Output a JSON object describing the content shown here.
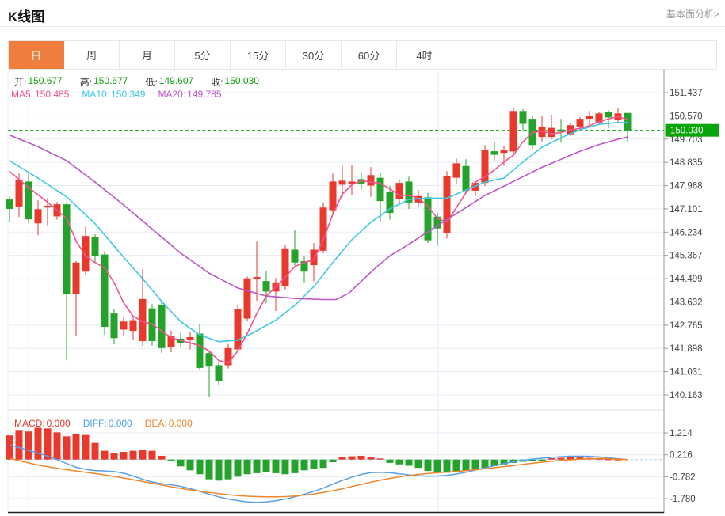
{
  "header": {
    "title": "K线图",
    "link_label": "基本面分析>"
  },
  "tabs": [
    {
      "name": "tab-day",
      "label": "日",
      "active": true
    },
    {
      "name": "tab-week",
      "label": "周",
      "active": false
    },
    {
      "name": "tab-month",
      "label": "月",
      "active": false
    },
    {
      "name": "tab-5min",
      "label": "5分",
      "active": false
    },
    {
      "name": "tab-15min",
      "label": "15分",
      "active": false
    },
    {
      "name": "tab-30min",
      "label": "30分",
      "active": false
    },
    {
      "name": "tab-60min",
      "label": "60分",
      "active": false
    },
    {
      "name": "tab-4hour",
      "label": "4时",
      "active": false
    }
  ],
  "ohlc_bar": [
    {
      "label": "开:",
      "value": "150.677"
    },
    {
      "label": "高:",
      "value": "150.677"
    },
    {
      "label": "低:",
      "value": "149.607"
    },
    {
      "label": "收:",
      "value": "150.030"
    }
  ],
  "ma_bar": [
    {
      "label": "MA5:",
      "value": "150.485",
      "color": "#f2538f"
    },
    {
      "label": "MA10:",
      "value": "150.349",
      "color": "#3fc8e4"
    },
    {
      "label": "MA20:",
      "value": "149.785",
      "color": "#bb55c8"
    }
  ],
  "macd_bar": [
    {
      "label": "MACD:",
      "value": "0.000",
      "color": "#e8392c"
    },
    {
      "label": "DIFF:",
      "value": "0.000",
      "color": "#4f9de8"
    },
    {
      "label": "DEA:",
      "value": "0.000",
      "color": "#f0862c"
    }
  ],
  "price_tag": {
    "value": "150.030",
    "bg": "#0aa50a"
  },
  "chart_data": {
    "type": "candlestick",
    "title": "K线图",
    "y_axis_ticks": [
      "151.437",
      "150.570",
      "149.703",
      "148.835",
      "147.968",
      "147.101",
      "146.234",
      "145.367",
      "144.499",
      "143.632",
      "142.765",
      "141.898",
      "141.031",
      "140.163"
    ],
    "macd_axis_ticks": [
      "1.214",
      "0.216",
      "-0.782",
      "-1.780"
    ],
    "current_price": 150.03,
    "colors": {
      "up": "#e8392c",
      "down": "#23a32a",
      "grid": "#e7edf6",
      "axis": "#999999",
      "axis_text": "#444444",
      "price_line": "#12a312",
      "macd_zero_line": "#a5d3ee",
      "panel_divider": "#e0e0e0",
      "bottom_line": "#222222"
    },
    "candles_ohlc": [
      [
        147.45,
        147.55,
        146.62,
        147.1
      ],
      [
        147.19,
        148.42,
        146.8,
        148.17
      ],
      [
        148.12,
        148.4,
        146.56,
        146.71
      ],
      [
        146.56,
        147.42,
        146.12,
        147.09
      ],
      [
        147.15,
        147.5,
        146.47,
        147.22
      ],
      [
        146.82,
        147.36,
        146.7,
        147.27
      ],
      [
        147.27,
        147.35,
        141.46,
        143.92
      ],
      [
        143.92,
        145.15,
        142.35,
        145.1
      ],
      [
        144.76,
        146.48,
        144.65,
        146.09
      ],
      [
        146.04,
        146.15,
        145.1,
        145.35
      ],
      [
        145.4,
        145.52,
        142.4,
        142.7
      ],
      [
        143.2,
        143.38,
        142.05,
        142.28
      ],
      [
        142.6,
        143.05,
        142.35,
        142.9
      ],
      [
        142.55,
        143.1,
        142.2,
        142.95
      ],
      [
        142.17,
        144.85,
        142.0,
        143.74
      ],
      [
        143.39,
        143.55,
        142.0,
        142.17
      ],
      [
        143.53,
        143.65,
        141.72,
        141.91
      ],
      [
        141.96,
        142.56,
        141.76,
        142.35
      ],
      [
        142.26,
        142.48,
        141.95,
        142.11
      ],
      [
        142.22,
        142.52,
        141.86,
        142.32
      ],
      [
        142.45,
        142.79,
        141.1,
        141.17
      ],
      [
        141.72,
        141.82,
        140.08,
        141.22
      ],
      [
        141.27,
        141.38,
        140.55,
        140.68
      ],
      [
        141.27,
        142.06,
        141.15,
        141.91
      ],
      [
        141.86,
        143.5,
        141.8,
        143.38
      ],
      [
        143.01,
        144.58,
        142.92,
        144.51
      ],
      [
        144.47,
        145.88,
        143.68,
        144.56
      ],
      [
        144.41,
        144.8,
        143.58,
        144.02
      ],
      [
        144.02,
        144.52,
        143.29,
        144.36
      ],
      [
        144.22,
        145.75,
        144.08,
        145.63
      ],
      [
        145.58,
        146.32,
        144.98,
        145.1
      ],
      [
        145.15,
        145.35,
        144.36,
        144.76
      ],
      [
        145.0,
        145.83,
        144.4,
        145.58
      ],
      [
        145.54,
        147.34,
        145.44,
        147.15
      ],
      [
        147.05,
        148.42,
        146.9,
        148.12
      ],
      [
        148.0,
        148.75,
        147.54,
        148.15
      ],
      [
        148.02,
        148.75,
        147.6,
        148.12
      ],
      [
        148.21,
        148.45,
        147.82,
        148.02
      ],
      [
        147.97,
        148.66,
        147.55,
        148.36
      ],
      [
        148.26,
        148.45,
        146.6,
        147.39
      ],
      [
        147.73,
        147.95,
        146.7,
        146.95
      ],
      [
        147.48,
        148.2,
        147.3,
        148.07
      ],
      [
        148.12,
        148.3,
        147.1,
        147.34
      ],
      [
        147.34,
        147.8,
        147.15,
        147.58
      ],
      [
        147.53,
        147.7,
        145.83,
        145.93
      ],
      [
        146.81,
        146.95,
        145.73,
        146.37
      ],
      [
        146.21,
        148.5,
        146.0,
        148.31
      ],
      [
        148.26,
        148.98,
        148.05,
        148.8
      ],
      [
        148.7,
        148.95,
        147.7,
        147.78
      ],
      [
        147.78,
        148.12,
        147.58,
        148.07
      ],
      [
        148.07,
        149.48,
        147.95,
        149.29
      ],
      [
        149.25,
        149.58,
        148.9,
        149.12
      ],
      [
        149.19,
        149.45,
        148.7,
        149.28
      ],
      [
        149.24,
        150.9,
        149.1,
        150.75
      ],
      [
        150.75,
        150.82,
        150.02,
        150.27
      ],
      [
        150.46,
        150.55,
        149.34,
        149.48
      ],
      [
        149.78,
        150.56,
        149.62,
        150.17
      ],
      [
        149.78,
        150.61,
        149.7,
        150.12
      ],
      [
        150.06,
        150.46,
        149.58,
        149.98
      ],
      [
        149.88,
        150.3,
        149.8,
        150.22
      ],
      [
        150.17,
        150.52,
        150.08,
        150.46
      ],
      [
        150.46,
        150.75,
        150.22,
        150.56
      ],
      [
        150.32,
        150.7,
        150.24,
        150.66
      ],
      [
        150.71,
        150.78,
        150.12,
        150.51
      ],
      [
        150.41,
        150.85,
        150.32,
        150.66
      ],
      [
        150.677,
        150.677,
        149.607,
        150.03
      ]
    ],
    "ma_lines": [
      {
        "name": "MA5",
        "color": "#f2538f",
        "points": [
          [
            12,
            148.5
          ],
          [
            36,
            147.9
          ],
          [
            60,
            147.35
          ],
          [
            84,
            146.75
          ],
          [
            96,
            145.9
          ],
          [
            108,
            145.35
          ],
          [
            120,
            145.1
          ],
          [
            132,
            144.9
          ],
          [
            144,
            144.35
          ],
          [
            156,
            143.6
          ],
          [
            168,
            143.1
          ],
          [
            180,
            142.9
          ],
          [
            192,
            142.8
          ],
          [
            204,
            142.55
          ],
          [
            216,
            142.3
          ],
          [
            228,
            142.2
          ],
          [
            240,
            142.1
          ],
          [
            252,
            142.0
          ],
          [
            264,
            141.8
          ],
          [
            276,
            141.45
          ],
          [
            288,
            141.35
          ],
          [
            300,
            141.8
          ],
          [
            312,
            142.45
          ],
          [
            324,
            143.2
          ],
          [
            336,
            143.85
          ],
          [
            348,
            144.2
          ],
          [
            360,
            144.55
          ],
          [
            372,
            144.95
          ],
          [
            384,
            145.1
          ],
          [
            396,
            145.2
          ],
          [
            408,
            145.95
          ],
          [
            420,
            146.9
          ],
          [
            432,
            147.65
          ],
          [
            444,
            148.0
          ],
          [
            456,
            148.15
          ],
          [
            468,
            148.1
          ],
          [
            480,
            148.05
          ],
          [
            492,
            147.85
          ],
          [
            504,
            147.6
          ],
          [
            516,
            147.6
          ],
          [
            528,
            147.5
          ],
          [
            540,
            147.2
          ],
          [
            552,
            146.75
          ],
          [
            564,
            146.6
          ],
          [
            576,
            147.15
          ],
          [
            588,
            147.7
          ],
          [
            600,
            148.1
          ],
          [
            612,
            148.3
          ],
          [
            624,
            148.55
          ],
          [
            636,
            148.85
          ],
          [
            648,
            149.1
          ],
          [
            660,
            149.6
          ],
          [
            672,
            149.95
          ],
          [
            684,
            150.0
          ],
          [
            696,
            149.9
          ],
          [
            708,
            149.95
          ],
          [
            720,
            150.05
          ],
          [
            732,
            150.1
          ],
          [
            744,
            150.2
          ],
          [
            756,
            150.35
          ],
          [
            768,
            150.45
          ],
          [
            780,
            150.55
          ],
          [
            792,
            150.42
          ]
        ]
      },
      {
        "name": "MA10",
        "color": "#3fc8e4",
        "points": [
          [
            12,
            148.9
          ],
          [
            48,
            148.25
          ],
          [
            84,
            147.55
          ],
          [
            120,
            146.55
          ],
          [
            156,
            145.3
          ],
          [
            180,
            144.5
          ],
          [
            204,
            143.65
          ],
          [
            228,
            142.9
          ],
          [
            252,
            142.4
          ],
          [
            276,
            142.15
          ],
          [
            300,
            142.2
          ],
          [
            324,
            142.55
          ],
          [
            348,
            142.95
          ],
          [
            372,
            143.5
          ],
          [
            396,
            144.2
          ],
          [
            420,
            145.1
          ],
          [
            444,
            145.95
          ],
          [
            468,
            146.6
          ],
          [
            492,
            147.1
          ],
          [
            516,
            147.45
          ],
          [
            540,
            147.5
          ],
          [
            564,
            147.5
          ],
          [
            588,
            147.8
          ],
          [
            612,
            148.1
          ],
          [
            636,
            148.25
          ],
          [
            660,
            148.85
          ],
          [
            684,
            149.4
          ],
          [
            708,
            149.75
          ],
          [
            732,
            150.05
          ],
          [
            756,
            150.25
          ],
          [
            780,
            150.32
          ],
          [
            792,
            150.32
          ]
        ]
      },
      {
        "name": "MA20",
        "color": "#bb55c8",
        "points": [
          [
            12,
            149.85
          ],
          [
            48,
            149.42
          ],
          [
            84,
            148.9
          ],
          [
            120,
            148.1
          ],
          [
            156,
            147.25
          ],
          [
            192,
            146.35
          ],
          [
            228,
            145.45
          ],
          [
            264,
            144.7
          ],
          [
            300,
            144.15
          ],
          [
            336,
            143.85
          ],
          [
            372,
            143.76
          ],
          [
            408,
            143.72
          ],
          [
            424,
            143.72
          ],
          [
            440,
            143.95
          ],
          [
            456,
            144.4
          ],
          [
            472,
            144.85
          ],
          [
            492,
            145.35
          ],
          [
            516,
            145.78
          ],
          [
            540,
            146.25
          ],
          [
            564,
            146.7
          ],
          [
            588,
            147.15
          ],
          [
            612,
            147.6
          ],
          [
            636,
            147.95
          ],
          [
            660,
            148.3
          ],
          [
            684,
            148.65
          ],
          [
            708,
            148.95
          ],
          [
            732,
            149.25
          ],
          [
            756,
            149.5
          ],
          [
            780,
            149.7
          ],
          [
            792,
            149.78
          ]
        ]
      }
    ],
    "macd": {
      "histogram": [
        1.1,
        1.35,
        1.28,
        1.45,
        1.42,
        1.24,
        1.06,
        1.15,
        1.12,
        0.76,
        0.4,
        0.29,
        0.35,
        0.4,
        0.44,
        0.4,
        0.17,
        -0.06,
        -0.31,
        -0.49,
        -0.67,
        -0.9,
        -0.96,
        -0.9,
        -0.78,
        -0.67,
        -0.62,
        -0.57,
        -0.62,
        -0.67,
        -0.62,
        -0.49,
        -0.44,
        -0.38,
        -0.12,
        0.1,
        0.15,
        0.17,
        0.12,
        0.05,
        -0.15,
        -0.22,
        -0.28,
        -0.38,
        -0.52,
        -0.6,
        -0.6,
        -0.55,
        -0.5,
        -0.45,
        -0.38,
        -0.3,
        -0.22,
        -0.15,
        -0.1,
        -0.05,
        -0.04,
        0.06,
        0.08,
        0.1,
        0.1,
        0.08,
        0.05,
        0.03,
        0.02,
        0.0
      ],
      "diff": {
        "name": "DIFF",
        "color": "#5ba0e8",
        "values": [
          0.68,
          0.55,
          0.42,
          0.3,
          0.15,
          0.0,
          -0.18,
          -0.35,
          -0.45,
          -0.5,
          -0.52,
          -0.55,
          -0.62,
          -0.75,
          -0.9,
          -1.02,
          -1.1,
          -1.15,
          -1.22,
          -1.32,
          -1.45,
          -1.58,
          -1.7,
          -1.8,
          -1.87,
          -1.93,
          -1.95,
          -1.93,
          -1.88,
          -1.8,
          -1.7,
          -1.58,
          -1.45,
          -1.3,
          -1.12,
          -0.95,
          -0.8,
          -0.68,
          -0.6,
          -0.58,
          -0.6,
          -0.65,
          -0.7,
          -0.74,
          -0.76,
          -0.75,
          -0.72,
          -0.66,
          -0.58,
          -0.48,
          -0.38,
          -0.28,
          -0.18,
          -0.1,
          -0.03,
          0.02,
          0.06,
          0.1,
          0.13,
          0.15,
          0.15,
          0.14,
          0.12,
          0.08,
          0.04,
          0.0
        ]
      },
      "dea": {
        "name": "DEA",
        "color": "#f0862c",
        "values": [
          0.06,
          -0.05,
          -0.15,
          -0.25,
          -0.33,
          -0.4,
          -0.46,
          -0.52,
          -0.58,
          -0.64,
          -0.7,
          -0.77,
          -0.84,
          -0.92,
          -1.0,
          -1.08,
          -1.16,
          -1.24,
          -1.31,
          -1.38,
          -1.44,
          -1.5,
          -1.55,
          -1.6,
          -1.64,
          -1.67,
          -1.69,
          -1.7,
          -1.7,
          -1.69,
          -1.66,
          -1.62,
          -1.57,
          -1.5,
          -1.42,
          -1.33,
          -1.23,
          -1.13,
          -1.03,
          -0.94,
          -0.86,
          -0.79,
          -0.73,
          -0.68,
          -0.64,
          -0.6,
          -0.57,
          -0.54,
          -0.5,
          -0.46,
          -0.42,
          -0.37,
          -0.32,
          -0.27,
          -0.22,
          -0.17,
          -0.12,
          -0.08,
          -0.04,
          -0.01,
          0.02,
          0.04,
          0.05,
          0.04,
          0.02,
          0.0
        ]
      }
    }
  }
}
